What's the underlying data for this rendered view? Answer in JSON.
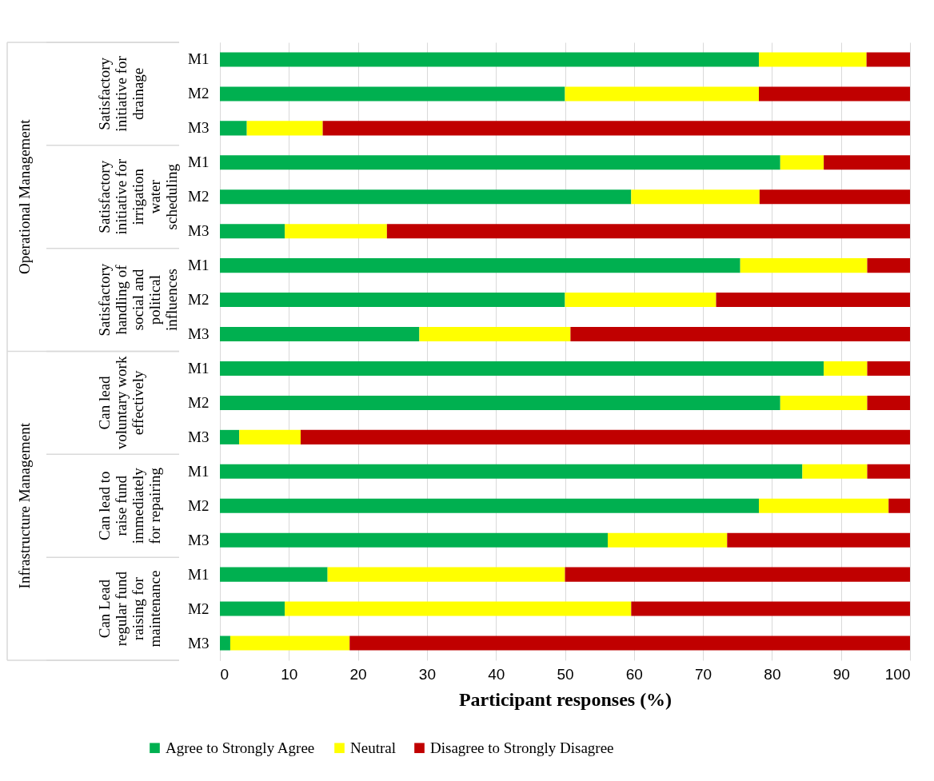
{
  "chart_data": {
    "type": "bar",
    "orientation": "horizontal",
    "stacked": true,
    "xlabel": "Participant responses (%)",
    "categories": [
      "M1",
      "M2",
      "M3",
      "M1",
      "M2",
      "M3",
      "M1",
      "M2",
      "M3",
      "M1",
      "M2",
      "M3",
      "M1",
      "M2",
      "M3",
      "M1",
      "M2",
      "M3"
    ],
    "series": [
      {
        "name": "Agree to Strongly Agree",
        "color": "#00b050",
        "values": [
          78.1,
          50,
          3.9,
          81.2,
          59.6,
          9.4,
          75.4,
          50,
          28.9,
          87.5,
          81.2,
          2.8,
          84.4,
          78.1,
          56.2,
          15.6,
          9.4,
          1.5
        ]
      },
      {
        "name": "Neutral",
        "color": "#ffff00",
        "values": [
          15.6,
          28.1,
          11.0,
          6.3,
          18.6,
          14.8,
          18.4,
          21.9,
          21.9,
          6.3,
          12.6,
          8.9,
          9.4,
          18.8,
          17.3,
          34.4,
          50.2,
          17.3
        ]
      },
      {
        "name": "Disagree to Strongly Disagree",
        "color": "#c00000",
        "values": [
          6.3,
          21.9,
          85.1,
          12.5,
          21.8,
          75.8,
          6.2,
          28.1,
          49.2,
          6.2,
          6.2,
          88.3,
          6.2,
          3.1,
          26.5,
          50,
          40.4,
          81.2
        ]
      }
    ],
    "annotations": [
      "Satisfactory initiative for drainage",
      "Satisfactory initiative for irrigation water scheduling",
      "Satisfactory handling of social and political influences",
      "Can lead voluntary work effectively",
      "Can lead to raise fund immediately for repairing",
      "Can Lead regular fund raising for maintenance",
      "Operational Management",
      "Infrastructure Management"
    ],
    "xlim": [
      0,
      100
    ],
    "xticks": [
      0,
      10,
      20,
      30,
      40,
      50,
      60,
      70,
      80,
      90,
      100
    ],
    "grid": "x",
    "legend": "bottom"
  }
}
